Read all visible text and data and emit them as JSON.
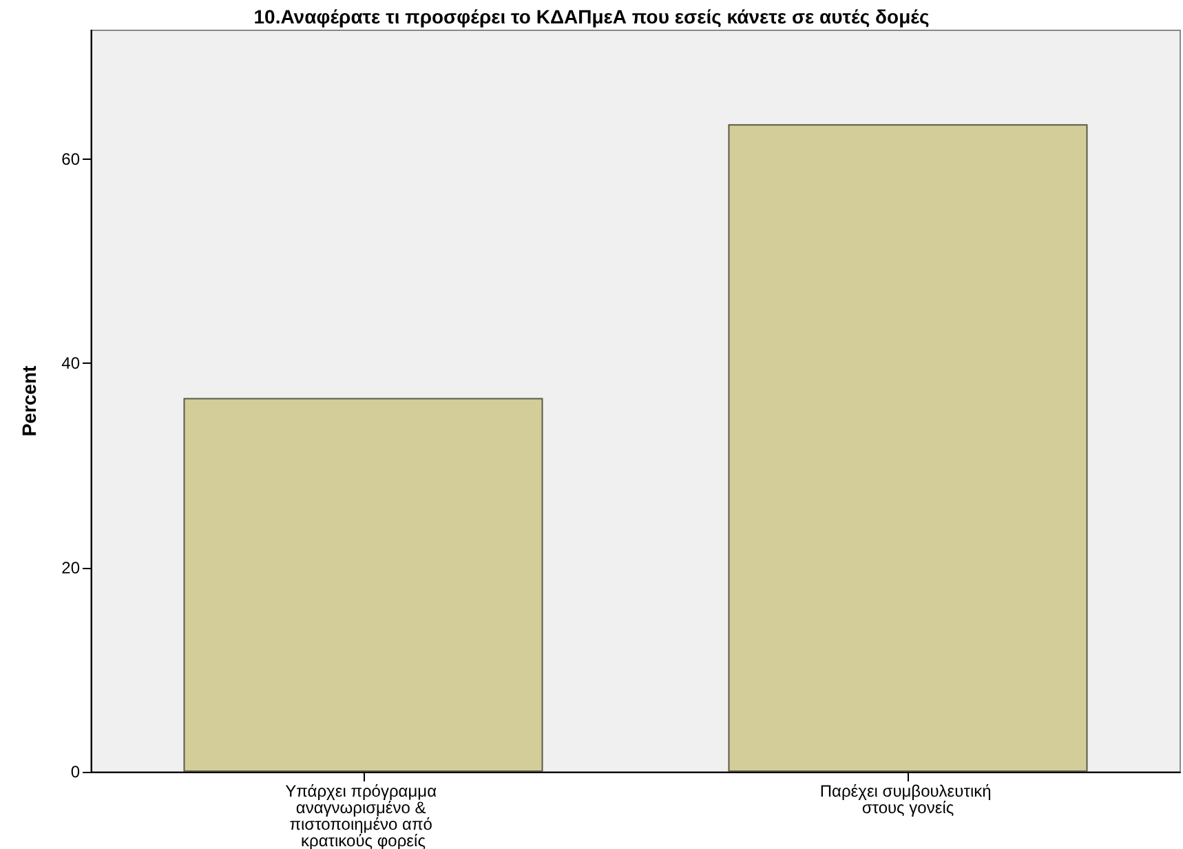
{
  "chart_data": {
    "type": "bar",
    "title": "10.Αναφέρατε τι προσφέρει το ΚΔΑΠμεΑ που εσείς κάνετε σε αυτές δομές",
    "categories": [
      "Υπάρχει πρόγραμμα αναγνωρισμένο & πιστοποιημένο από κρατικούς φορείς",
      "Παρέχει συμβουλευτική στους γονείς"
    ],
    "values": [
      36.6,
      63.4
    ],
    "color": "#d3cd99",
    "ylabel": "Percent",
    "ylim": [
      0,
      72.6
    ],
    "yticks": [
      0,
      20,
      40,
      60
    ],
    "grid": false
  }
}
